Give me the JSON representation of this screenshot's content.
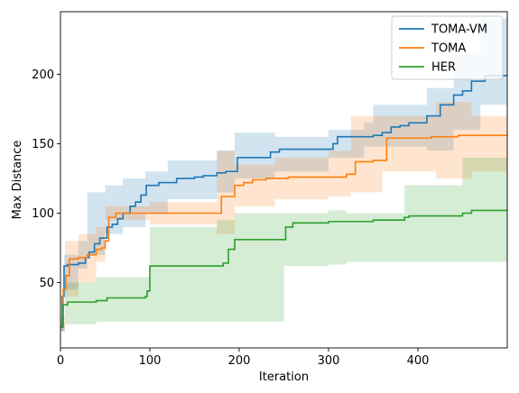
{
  "chart_data": {
    "type": "line",
    "title": "",
    "xlabel": "Iteration",
    "ylabel": "Max Distance",
    "xlim": [
      0,
      500
    ],
    "ylim": [
      3,
      245
    ],
    "xticks": [
      0,
      100,
      200,
      300,
      400
    ],
    "yticks": [
      50,
      100,
      150,
      200
    ],
    "grid": false,
    "legend_position": "top-right",
    "series": [
      {
        "name": "TOMA-VM",
        "color": "#1f77b4",
        "steps": [
          [
            0,
            18
          ],
          [
            2,
            40
          ],
          [
            4,
            62
          ],
          [
            8,
            63
          ],
          [
            20,
            64
          ],
          [
            28,
            68
          ],
          [
            32,
            72
          ],
          [
            38,
            78
          ],
          [
            44,
            82
          ],
          [
            52,
            90
          ],
          [
            58,
            92
          ],
          [
            64,
            96
          ],
          [
            70,
            100
          ],
          [
            78,
            105
          ],
          [
            84,
            108
          ],
          [
            90,
            113
          ],
          [
            96,
            120
          ],
          [
            110,
            122
          ],
          [
            130,
            125
          ],
          [
            150,
            126
          ],
          [
            160,
            127
          ],
          [
            175,
            129
          ],
          [
            185,
            130
          ],
          [
            198,
            140
          ],
          [
            205,
            140
          ],
          [
            235,
            144
          ],
          [
            245,
            146
          ],
          [
            305,
            150
          ],
          [
            310,
            155
          ],
          [
            350,
            156
          ],
          [
            360,
            158
          ],
          [
            370,
            162
          ],
          [
            380,
            163
          ],
          [
            390,
            165
          ],
          [
            410,
            170
          ],
          [
            425,
            178
          ],
          [
            440,
            185
          ],
          [
            450,
            188
          ],
          [
            460,
            195
          ],
          [
            475,
            199
          ],
          [
            500,
            199
          ]
        ],
        "band": [
          [
            0,
            15,
            25
          ],
          [
            4,
            45,
            70
          ],
          [
            20,
            60,
            80
          ],
          [
            30,
            70,
            115
          ],
          [
            50,
            85,
            120
          ],
          [
            70,
            90,
            125
          ],
          [
            95,
            100,
            130
          ],
          [
            120,
            110,
            138
          ],
          [
            175,
            115,
            145
          ],
          [
            195,
            125,
            158
          ],
          [
            240,
            130,
            155
          ],
          [
            300,
            140,
            160
          ],
          [
            340,
            148,
            165
          ],
          [
            350,
            148,
            178
          ],
          [
            410,
            145,
            190
          ],
          [
            440,
            160,
            215
          ],
          [
            470,
            178,
            240
          ],
          [
            500,
            178,
            240
          ]
        ]
      },
      {
        "name": "TOMA",
        "color": "#ff7f0e",
        "steps": [
          [
            0,
            18
          ],
          [
            3,
            45
          ],
          [
            6,
            55
          ],
          [
            10,
            67
          ],
          [
            20,
            68
          ],
          [
            30,
            70
          ],
          [
            40,
            74
          ],
          [
            46,
            75
          ],
          [
            50,
            80
          ],
          [
            54,
            97
          ],
          [
            62,
            100
          ],
          [
            100,
            100
          ],
          [
            175,
            100
          ],
          [
            180,
            112
          ],
          [
            195,
            120
          ],
          [
            205,
            122
          ],
          [
            215,
            124
          ],
          [
            230,
            125
          ],
          [
            255,
            126
          ],
          [
            320,
            128
          ],
          [
            330,
            137
          ],
          [
            350,
            138
          ],
          [
            365,
            154
          ],
          [
            400,
            154
          ],
          [
            415,
            155
          ],
          [
            445,
            156
          ],
          [
            500,
            156
          ]
        ],
        "band": [
          [
            0,
            15,
            25
          ],
          [
            5,
            40,
            80
          ],
          [
            20,
            50,
            85
          ],
          [
            40,
            65,
            90
          ],
          [
            50,
            95,
            105
          ],
          [
            100,
            92,
            108
          ],
          [
            175,
            85,
            145
          ],
          [
            195,
            105,
            135
          ],
          [
            240,
            110,
            140
          ],
          [
            300,
            112,
            145
          ],
          [
            325,
            115,
            170
          ],
          [
            360,
            130,
            170
          ],
          [
            420,
            125,
            180
          ],
          [
            460,
            130,
            170
          ],
          [
            500,
            130,
            170
          ]
        ]
      },
      {
        "name": "HER",
        "color": "#2ca02c",
        "steps": [
          [
            0,
            18
          ],
          [
            3,
            34
          ],
          [
            8,
            36
          ],
          [
            40,
            37
          ],
          [
            52,
            39
          ],
          [
            95,
            40
          ],
          [
            97,
            44
          ],
          [
            100,
            62
          ],
          [
            160,
            62
          ],
          [
            182,
            64
          ],
          [
            188,
            74
          ],
          [
            195,
            81
          ],
          [
            240,
            81
          ],
          [
            252,
            90
          ],
          [
            260,
            93
          ],
          [
            300,
            94
          ],
          [
            350,
            95
          ],
          [
            385,
            97
          ],
          [
            390,
            98
          ],
          [
            400,
            98
          ],
          [
            450,
            100
          ],
          [
            460,
            102
          ],
          [
            500,
            102
          ]
        ],
        "band": [
          [
            0,
            15,
            20
          ],
          [
            5,
            20,
            50
          ],
          [
            40,
            22,
            54
          ],
          [
            100,
            22,
            90
          ],
          [
            175,
            22,
            95
          ],
          [
            195,
            22,
            100
          ],
          [
            250,
            62,
            100
          ],
          [
            300,
            63,
            102
          ],
          [
            320,
            65,
            100
          ],
          [
            385,
            65,
            120
          ],
          [
            450,
            65,
            140
          ],
          [
            500,
            65,
            140
          ]
        ]
      }
    ]
  }
}
